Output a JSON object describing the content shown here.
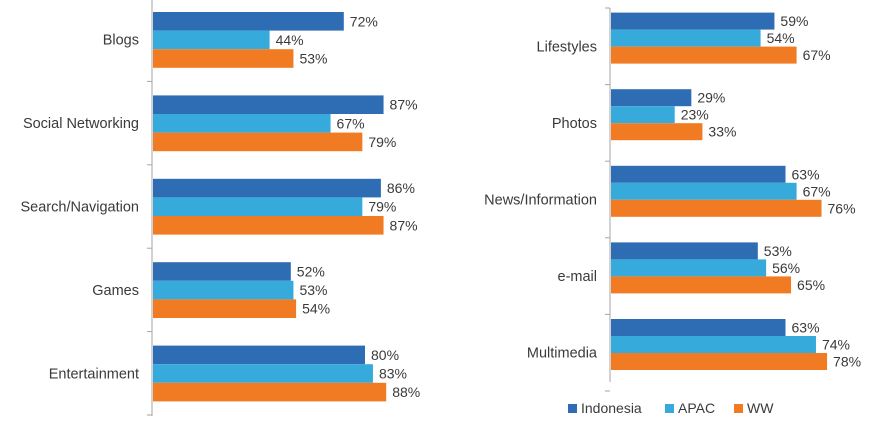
{
  "chart_data": [
    {
      "type": "bar",
      "orientation": "horizontal",
      "categories": [
        "Blogs",
        "Social Networking",
        "Search/Navigation",
        "Games",
        "Entertainment"
      ],
      "series": [
        {
          "name": "Indonesia",
          "color": "#2e6db4",
          "values": [
            72,
            87,
            86,
            52,
            80
          ]
        },
        {
          "name": "APAC",
          "color": "#37aadc",
          "values": [
            44,
            67,
            79,
            53,
            83
          ]
        },
        {
          "name": "WW",
          "color": "#f07b22",
          "values": [
            53,
            79,
            87,
            54,
            88
          ]
        }
      ],
      "value_suffix": "%",
      "xlim": [
        0,
        100
      ],
      "grid": false
    },
    {
      "type": "bar",
      "orientation": "horizontal",
      "categories": [
        "Lifestyles",
        "Photos",
        "News/Information",
        "e-mail",
        "Multimedia"
      ],
      "series": [
        {
          "name": "Indonesia",
          "color": "#2e6db4",
          "values": [
            59,
            29,
            63,
            53,
            63
          ]
        },
        {
          "name": "APAC",
          "color": "#37aadc",
          "values": [
            54,
            23,
            67,
            56,
            74
          ]
        },
        {
          "name": "WW",
          "color": "#f07b22",
          "values": [
            67,
            33,
            76,
            65,
            78
          ]
        }
      ],
      "value_suffix": "%",
      "xlim": [
        0,
        100
      ],
      "grid": false
    }
  ],
  "legend": {
    "position": "bottom-right",
    "items": [
      {
        "label": "Indonesia",
        "color": "#2e6db4"
      },
      {
        "label": "APAC",
        "color": "#37aadc"
      },
      {
        "label": "WW",
        "color": "#f07b22"
      }
    ]
  }
}
